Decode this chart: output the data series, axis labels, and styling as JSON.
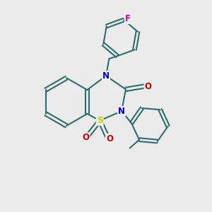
{
  "bg_color": "#ebebeb",
  "bond_color": "#2d6e6e",
  "bond_width": 1.5,
  "atom_colors": {
    "N": "#0000cc",
    "S": "#cccc00",
    "O": "#cc0000",
    "F": "#cc00cc",
    "C": "#2d6e6e"
  },
  "font_size": 8.5,
  "figsize": [
    3.0,
    3.0
  ],
  "dpi": 100,
  "xlim": [
    0,
    10
  ],
  "ylim": [
    0,
    10
  ]
}
